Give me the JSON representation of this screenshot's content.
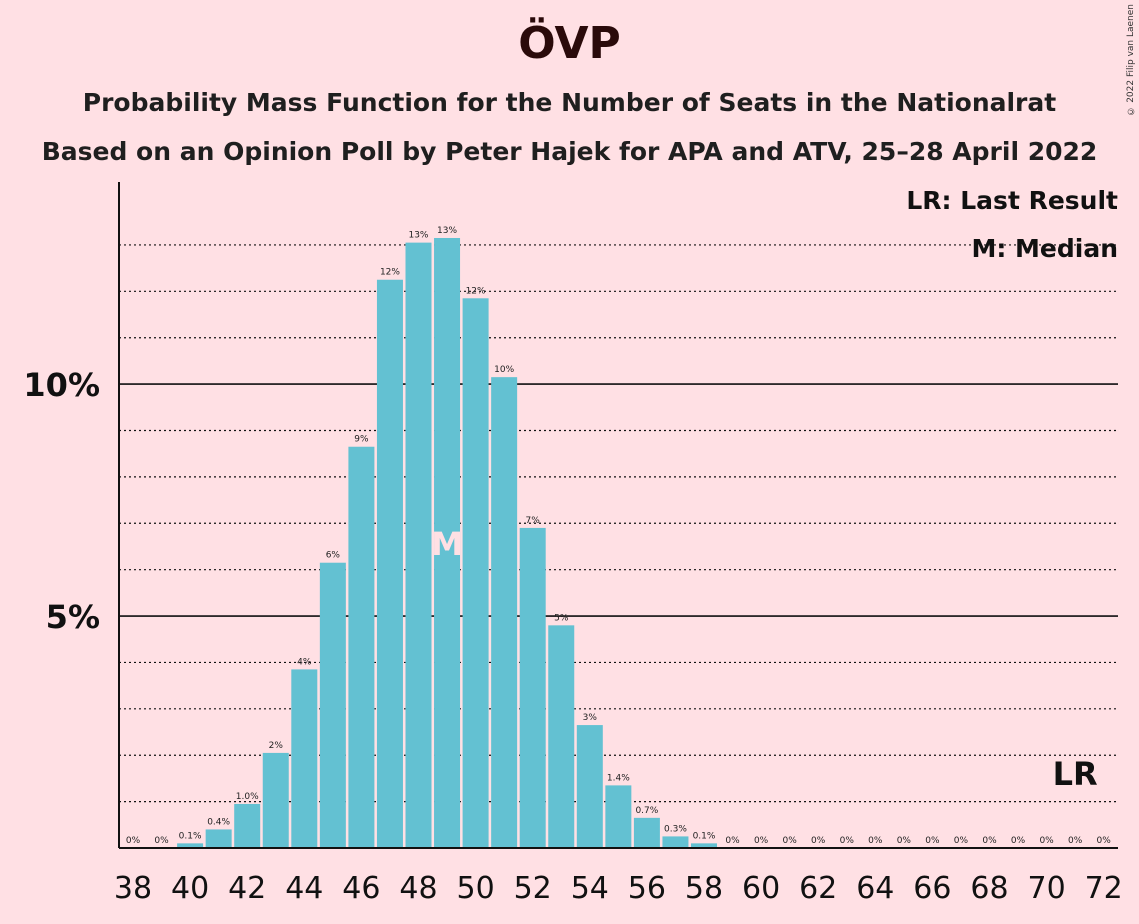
{
  "title": "ÖVP",
  "subtitle1": "Probability Mass Function for the Number of Seats in the Nationalrat",
  "subtitle2": "Based on an Opinion Poll by Peter Hajek for APA and ATV, 25–28 April 2022",
  "copyright": "© 2022 Filip van Laenen",
  "legend": {
    "lr": "LR: Last Result",
    "m": "M: Median"
  },
  "colors": {
    "bar": "#63c1d2",
    "background": "#ffe0e4"
  },
  "chart_data": {
    "type": "bar",
    "x": [
      38,
      39,
      40,
      41,
      42,
      43,
      44,
      45,
      46,
      47,
      48,
      49,
      50,
      51,
      52,
      53,
      54,
      55,
      56,
      57,
      58,
      59,
      60,
      61,
      62,
      63,
      64,
      65,
      66,
      67,
      68,
      69,
      70,
      71,
      72
    ],
    "values": [
      0,
      0,
      0.1,
      0.4,
      0.95,
      2.05,
      3.85,
      6.15,
      8.65,
      12.25,
      13.05,
      13.15,
      11.85,
      10.15,
      6.9,
      4.8,
      2.65,
      1.35,
      0.65,
      0.25,
      0.1,
      0,
      0,
      0,
      0,
      0,
      0,
      0,
      0,
      0,
      0,
      0,
      0,
      0,
      0
    ],
    "labels": [
      "0%",
      "0%",
      "0.1%",
      "0.4%",
      "1.0%",
      "2%",
      "4%",
      "6%",
      "9%",
      "12%",
      "13%",
      "13%",
      "12%",
      "10%",
      "7%",
      "5%",
      "3%",
      "1.4%",
      "0.7%",
      "0.3%",
      "0.1%",
      "0%",
      "0%",
      "0%",
      "0%",
      "0%",
      "0%",
      "0%",
      "0%",
      "0%",
      "0%",
      "0%",
      "0%",
      "0%",
      "0%"
    ],
    "xticks": [
      38,
      40,
      42,
      44,
      46,
      48,
      50,
      52,
      54,
      56,
      58,
      60,
      62,
      64,
      66,
      68,
      70,
      72
    ],
    "yticks": [
      {
        "value": 5,
        "label": "5%"
      },
      {
        "value": 10,
        "label": "10%"
      }
    ],
    "ylim": [
      0,
      14.4
    ],
    "median": 49,
    "median_label": "M",
    "last_result": 71,
    "last_result_label": "LR",
    "grid": true
  }
}
